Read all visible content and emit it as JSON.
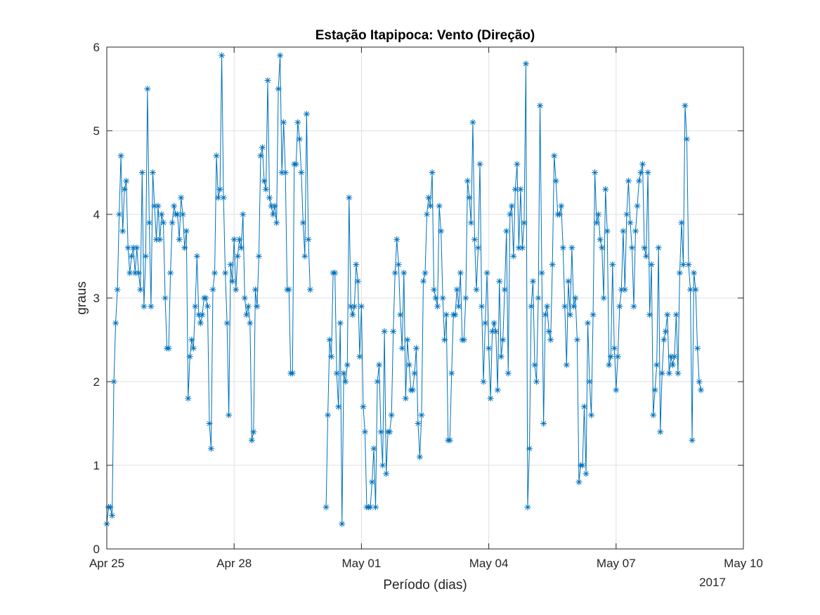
{
  "chart_data": {
    "type": "line",
    "title": "Estação Itapipoca: Vento (Direção)",
    "xlabel": "Período (dias)",
    "ylabel": "graus",
    "x_tick_labels": [
      "Apr 25",
      "Apr 28",
      "May 01",
      "May 04",
      "May 07",
      "May 10"
    ],
    "x_secondary_label": "2017",
    "y_tick_labels": [
      "0",
      "1",
      "2",
      "3",
      "4",
      "5",
      "6"
    ],
    "x_range": [
      "2017-04-25",
      "2017-05-10"
    ],
    "ylim": [
      0,
      6
    ],
    "grid": true,
    "marker": "asterisk",
    "series": [
      {
        "color": "#0072bd",
        "segments": [
          {
            "start": "2017-04-25T00:00",
            "step_hours": 1,
            "values": [
              0.3,
              0.5,
              0.5,
              0.4,
              2.0,
              2.7,
              3.1,
              4.0,
              4.7,
              3.8,
              4.3,
              4.4,
              3.6,
              3.3,
              3.5,
              3.6,
              3.3,
              3.6,
              3.3,
              3.1,
              4.5,
              2.9,
              3.5,
              5.5,
              3.9,
              2.9,
              4.5,
              4.1,
              3.7,
              4.1,
              3.7,
              4.0,
              3.9,
              3.0,
              2.4,
              2.4,
              3.3,
              3.9,
              4.1,
              4.0,
              4.0,
              3.7,
              4.2,
              4.0,
              3.6,
              3.8,
              1.8,
              2.3,
              2.5,
              2.4,
              2.9,
              3.5,
              2.8,
              2.7,
              2.8,
              3.0,
              3.0,
              2.9,
              1.5,
              1.2,
              3.1,
              3.3,
              4.7,
              4.2,
              4.3,
              5.9,
              4.2,
              3.3,
              2.7,
              1.6,
              3.4,
              3.2,
              3.7,
              3.1,
              3.5,
              3.7,
              3.6,
              4.0,
              3.0,
              2.8,
              2.9,
              2.7,
              1.3,
              1.4,
              3.1,
              2.9,
              3.5,
              4.7,
              4.8,
              4.4,
              4.3,
              5.6,
              4.2,
              4.1,
              4.0,
              4.1,
              3.9,
              5.5,
              5.9,
              4.5,
              5.1,
              4.5,
              3.1,
              3.1,
              2.1,
              2.1,
              4.6,
              4.6,
              5.1,
              4.9,
              4.5,
              3.9,
              3.5,
              5.2,
              3.7,
              3.1
            ]
          },
          {
            "start": "2017-04-30T04:00",
            "step_hours": 1,
            "values": [
              0.5,
              1.6,
              2.5,
              2.3,
              3.3,
              3.3,
              2.1,
              1.7,
              2.7,
              0.3,
              2.1,
              2.0,
              2.2,
              4.2,
              2.9,
              2.8,
              2.9,
              3.4,
              3.2,
              2.3,
              2.9,
              1.7,
              1.4,
              0.5,
              0.5,
              0.5,
              0.8,
              1.2,
              0.5,
              2.0,
              2.2,
              1.4,
              1.0,
              2.6,
              0.9,
              1.4,
              1.4,
              1.6,
              2.6,
              3.3,
              3.7,
              3.4,
              2.8,
              2.4,
              3.3,
              1.8,
              2.5,
              2.2,
              1.9,
              1.9,
              2.1,
              2.4,
              1.5,
              1.1,
              1.6,
              3.2,
              3.3,
              4.0,
              4.2,
              4.1,
              4.5,
              3.1,
              3.0,
              2.9,
              4.1,
              3.8,
              3.0,
              2.5,
              2.8,
              1.3,
              1.3,
              2.1,
              2.8,
              2.8,
              3.1,
              2.9,
              3.3,
              2.5,
              2.5,
              3.0,
              4.4,
              4.2,
              3.9,
              5.1,
              3.7,
              3.1,
              3.6,
              4.6,
              2.9,
              2.0,
              2.7,
              3.3,
              2.4,
              1.8,
              2.6,
              2.7,
              2.6,
              1.9,
              3.2,
              2.3,
              2.5,
              3.1,
              3.8,
              2.1,
              4.0,
              4.1,
              3.5,
              4.3,
              4.6,
              3.6,
              4.3,
              3.6,
              3.9,
              5.8,
              0.5,
              1.2,
              2.9,
              3.2,
              2.2,
              2.0,
              3.0,
              5.3,
              3.3,
              1.5,
              2.8,
              2.9,
              2.6,
              2.5,
              3.4,
              4.7,
              4.4,
              4.0,
              4.0,
              4.1,
              3.6,
              2.9,
              2.2,
              3.2,
              2.8,
              3.6,
              2.9,
              3.0,
              2.5,
              0.8,
              1.0,
              1.0,
              1.7,
              0.9,
              2.7,
              2.0,
              1.6,
              2.8,
              4.5,
              3.9,
              4.0,
              3.7,
              3.6,
              3.0,
              4.3,
              3.8,
              2.2,
              2.3,
              3.4,
              2.4,
              1.9,
              2.3,
              2.9,
              3.1,
              3.8,
              3.1,
              4.0,
              4.4,
              3.9,
              3.6,
              2.9,
              3.8,
              4.1,
              4.4,
              4.5,
              4.6,
              3.6,
              3.5,
              4.5,
              2.8,
              3.4,
              1.6,
              1.9,
              2.2,
              3.6,
              1.4,
              2.1,
              2.5,
              2.6,
              2.8,
              2.1,
              2.3,
              2.2,
              2.3,
              2.8,
              2.1,
              3.3,
              3.9,
              3.4,
              5.3,
              4.9,
              3.4,
              3.1,
              1.3,
              3.3,
              3.1,
              2.4,
              2.0,
              1.9
            ]
          }
        ]
      }
    ]
  }
}
